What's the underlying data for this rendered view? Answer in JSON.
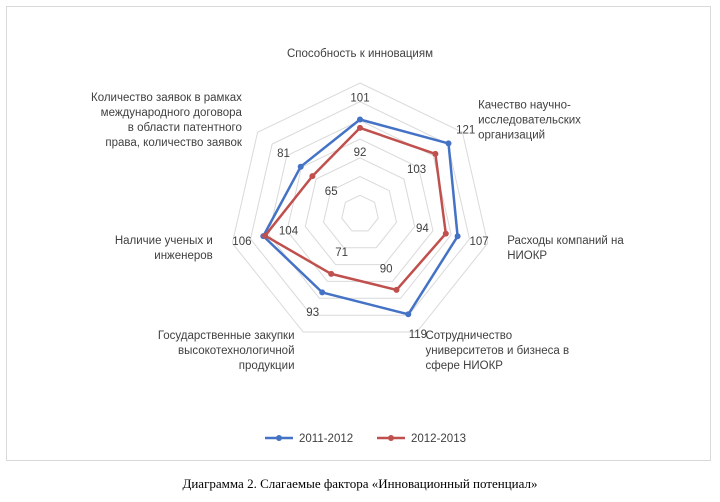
{
  "chart_data": {
    "type": "radar",
    "categories": [
      [
        "Способность к инновациям"
      ],
      [
        "Качество научно-",
        "исследовательских",
        "организаций"
      ],
      [
        "Расходы компаний на",
        "НИОКР"
      ],
      [
        "Сотрудничество",
        "университетов и бизнеса в",
        "сфере НИОКР"
      ],
      [
        "Государственные закупки",
        "высокотехнологичной",
        "продукции"
      ],
      [
        "Наличие ученых и",
        "инженеров"
      ],
      [
        "Количество заявок в рамках",
        "международного договора",
        "в области патентного",
        "права, количество заявок"
      ]
    ],
    "series": [
      {
        "name": "2011-2012",
        "color": "#4472c4",
        "values": [
          101,
          121,
          107,
          119,
          93,
          106,
          81
        ]
      },
      {
        "name": "2012-2013",
        "color": "#c0504d",
        "values": [
          92,
          103,
          94,
          90,
          71,
          104,
          65
        ]
      }
    ],
    "rlim": [
      0,
      140
    ],
    "grid": true,
    "legend": "bottom"
  },
  "caption": "Диаграмма 2. Слагаемые фактора «Инновационный потенциал»"
}
